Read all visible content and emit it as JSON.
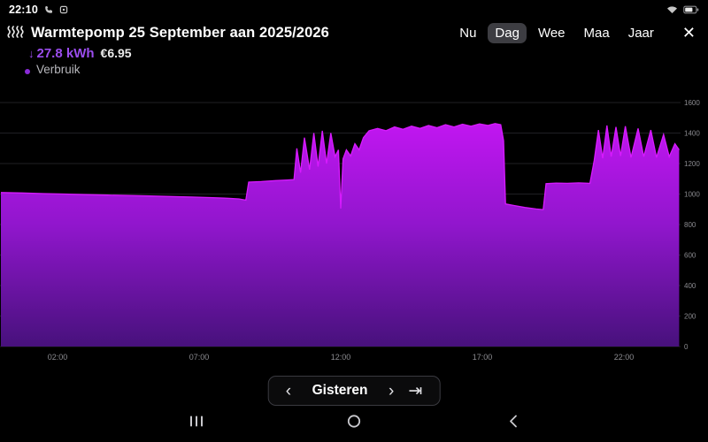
{
  "status_bar": {
    "time": "22:10"
  },
  "header": {
    "title": "Warmtepomp 25 September aan 2025/2026",
    "kwh_arrow": "↓",
    "kwh": "27.8 kWh",
    "cost": "€6.95",
    "legend": "Verbruik",
    "close": "✕"
  },
  "tabs": [
    {
      "label": "Nu",
      "active": false
    },
    {
      "label": "Dag",
      "active": true
    },
    {
      "label": "Wee",
      "active": false
    },
    {
      "label": "Maa",
      "active": false
    },
    {
      "label": "Jaar",
      "active": false
    }
  ],
  "pager": {
    "prev": "‹",
    "label": "Gisteren",
    "next": "›",
    "last": "⇥"
  },
  "colors": {
    "accent_purple": "#9b4dee",
    "background": "#000000",
    "tab_active_bg": "#3d3d42"
  },
  "chart_data": {
    "type": "area",
    "title": "Warmtepomp verbruik (W) per dag",
    "series_name": "Verbruik",
    "x_unit": "hour-of-day",
    "y_unit": "W",
    "ylim": [
      0,
      1600
    ],
    "y_ticks": [
      0,
      200,
      400,
      600,
      800,
      1000,
      1200,
      1400,
      1600
    ],
    "x_ticks": [
      {
        "hour": 2,
        "label": "02:00"
      },
      {
        "hour": 7,
        "label": "07:00"
      },
      {
        "hour": 12,
        "label": "12:00"
      },
      {
        "hour": 17,
        "label": "17:00"
      },
      {
        "hour": 22,
        "label": "22:00"
      }
    ],
    "grid": true,
    "legend_position": "top-left",
    "colors": {
      "line": "#d81aff",
      "gradient_top": "#cb16f8",
      "gradient_mid": "#9116cd",
      "gradient_bottom": "#47117c",
      "grid_line": "#202024",
      "tick_label": "#8b8b90"
    },
    "series": [
      {
        "name": "Verbruik",
        "points": [
          [
            0,
            1010
          ],
          [
            0.75,
            1007
          ],
          [
            1.5,
            1003
          ],
          [
            2.25,
            1000
          ],
          [
            3,
            996
          ],
          [
            3.75,
            993
          ],
          [
            4.5,
            990
          ],
          [
            5.25,
            987
          ],
          [
            6,
            984
          ],
          [
            6.75,
            980
          ],
          [
            7.5,
            976
          ],
          [
            8,
            972
          ],
          [
            8.4,
            968
          ],
          [
            8.65,
            960
          ],
          [
            8.75,
            1078
          ],
          [
            9.2,
            1082
          ],
          [
            9.7,
            1088
          ],
          [
            10.1,
            1092
          ],
          [
            10.35,
            1095
          ],
          [
            10.45,
            1300
          ],
          [
            10.58,
            1140
          ],
          [
            10.72,
            1370
          ],
          [
            10.9,
            1160
          ],
          [
            11.05,
            1400
          ],
          [
            11.2,
            1180
          ],
          [
            11.35,
            1415
          ],
          [
            11.5,
            1200
          ],
          [
            11.65,
            1400
          ],
          [
            11.8,
            1245
          ],
          [
            11.92,
            1290
          ],
          [
            12.0,
            905
          ],
          [
            12.08,
            1230
          ],
          [
            12.2,
            1290
          ],
          [
            12.35,
            1250
          ],
          [
            12.5,
            1330
          ],
          [
            12.65,
            1290
          ],
          [
            12.8,
            1370
          ],
          [
            13.0,
            1415
          ],
          [
            13.3,
            1430
          ],
          [
            13.6,
            1415
          ],
          [
            13.9,
            1440
          ],
          [
            14.2,
            1425
          ],
          [
            14.5,
            1445
          ],
          [
            14.8,
            1430
          ],
          [
            15.1,
            1450
          ],
          [
            15.4,
            1435
          ],
          [
            15.7,
            1455
          ],
          [
            16,
            1440
          ],
          [
            16.3,
            1458
          ],
          [
            16.6,
            1445
          ],
          [
            16.9,
            1460
          ],
          [
            17.2,
            1450
          ],
          [
            17.45,
            1462
          ],
          [
            17.65,
            1455
          ],
          [
            17.75,
            1350
          ],
          [
            17.82,
            935
          ],
          [
            18.1,
            925
          ],
          [
            18.5,
            912
          ],
          [
            18.9,
            902
          ],
          [
            19.15,
            898
          ],
          [
            19.25,
            1068
          ],
          [
            19.6,
            1072
          ],
          [
            20,
            1070
          ],
          [
            20.4,
            1073
          ],
          [
            20.8,
            1070
          ],
          [
            20.95,
            1220
          ],
          [
            21.1,
            1420
          ],
          [
            21.25,
            1235
          ],
          [
            21.4,
            1450
          ],
          [
            21.55,
            1245
          ],
          [
            21.72,
            1440
          ],
          [
            21.88,
            1250
          ],
          [
            22.05,
            1445
          ],
          [
            22.25,
            1240
          ],
          [
            22.5,
            1430
          ],
          [
            22.7,
            1245
          ],
          [
            22.95,
            1420
          ],
          [
            23.15,
            1240
          ],
          [
            23.4,
            1390
          ],
          [
            23.6,
            1245
          ],
          [
            23.8,
            1330
          ],
          [
            23.95,
            1290
          ]
        ]
      }
    ]
  },
  "nav_bar": {
    "recents": "recents",
    "home": "home",
    "back": "back"
  }
}
